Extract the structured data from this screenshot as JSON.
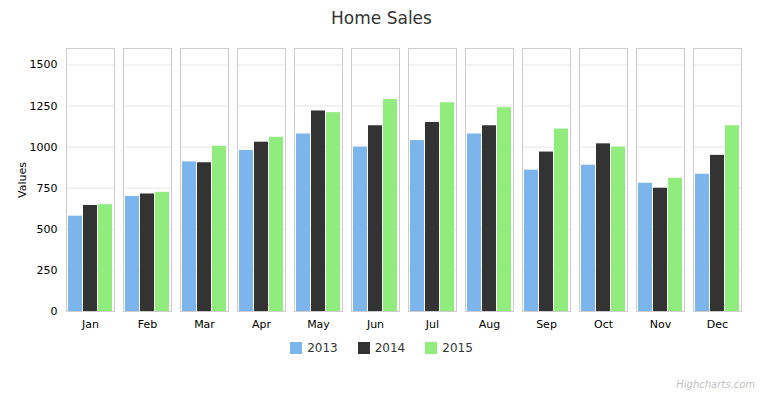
{
  "chart_data": {
    "type": "bar",
    "title": "Home Sales",
    "ylabel": "Values",
    "categories": [
      "Jan",
      "Feb",
      "Mar",
      "Apr",
      "May",
      "Jun",
      "Jul",
      "Aug",
      "Sep",
      "Oct",
      "Nov",
      "Dec"
    ],
    "series": [
      {
        "name": "2013",
        "color": "#7cb5ec",
        "values": [
          580,
          700,
          910,
          980,
          1080,
          1000,
          1040,
          1080,
          860,
          890,
          780,
          835
        ]
      },
      {
        "name": "2014",
        "color": "#333333",
        "values": [
          645,
          715,
          905,
          1030,
          1220,
          1130,
          1150,
          1130,
          970,
          1020,
          750,
          950
        ]
      },
      {
        "name": "2015",
        "color": "#90ed7d",
        "values": [
          650,
          725,
          1005,
          1060,
          1210,
          1290,
          1270,
          1240,
          1110,
          1000,
          810,
          1130
        ]
      }
    ],
    "ylim": [
      0,
      1600
    ],
    "yticks": [
      0,
      250,
      500,
      750,
      1000,
      1250,
      1500
    ],
    "grid": true,
    "legend": "bottom",
    "annotations": [
      "Highcharts.com"
    ]
  }
}
